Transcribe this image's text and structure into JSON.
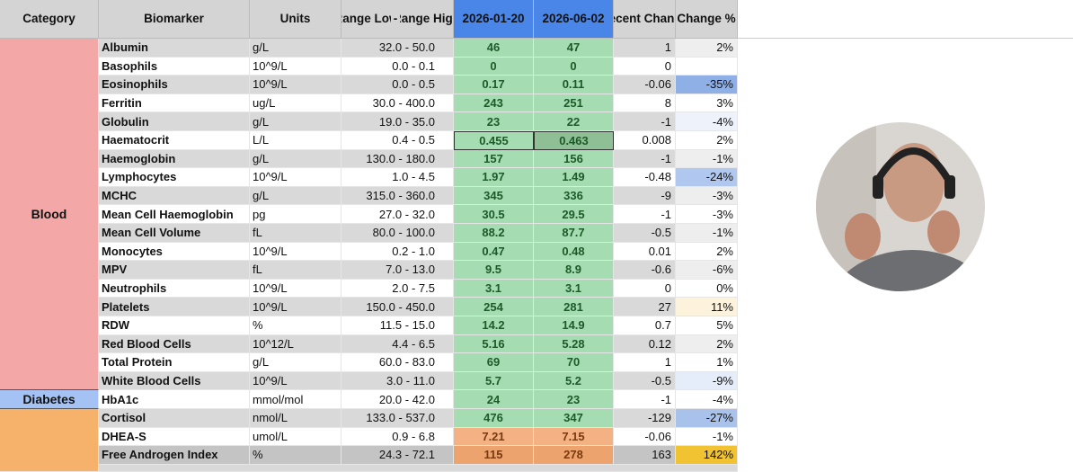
{
  "header": {
    "category": "Category",
    "biomarker": "Biomarker",
    "units": "Units",
    "range_low": "Range Low",
    "range_sep": "-",
    "range_high": "Range High",
    "date1": "2026-01-20",
    "date2": "2026-06-02",
    "recent_change": "Recent Change",
    "change_pct": "Change %"
  },
  "categories": [
    {
      "label": "Blood",
      "first_row": 0,
      "last_row": 18
    },
    {
      "label": "Diabetes",
      "first_row": 19,
      "last_row": 19
    }
  ],
  "rows": [
    [
      "Albumin",
      "g/L",
      "32.0 - 50.0",
      "46",
      "47",
      "1",
      "2%"
    ],
    [
      "Basophils",
      "10^9/L",
      "0.0 - 0.1",
      "0",
      "0",
      "0",
      ""
    ],
    [
      "Eosinophils",
      "10^9/L",
      "0.0 - 0.5",
      "0.17",
      "0.11",
      "-0.06",
      "-35%"
    ],
    [
      "Ferritin",
      "ug/L",
      "30.0 - 400.0",
      "243",
      "251",
      "8",
      "3%"
    ],
    [
      "Globulin",
      "g/L",
      "19.0 - 35.0",
      "23",
      "22",
      "-1",
      "-4%"
    ],
    [
      "Haematocrit",
      "L/L",
      "0.4 - 0.5",
      "0.455",
      "0.463",
      "0.008",
      "2%"
    ],
    [
      "Haemoglobin",
      "g/L",
      "130.0 - 180.0",
      "157",
      "156",
      "-1",
      "-1%"
    ],
    [
      "Lymphocytes",
      "10^9/L",
      "1.0 - 4.5",
      "1.97",
      "1.49",
      "-0.48",
      "-24%"
    ],
    [
      "MCHC",
      "g/L",
      "315.0 - 360.0",
      "345",
      "336",
      "-9",
      "-3%"
    ],
    [
      "Mean Cell Haemoglobin",
      "pg",
      "27.0 - 32.0",
      "30.5",
      "29.5",
      "-1",
      "-3%"
    ],
    [
      "Mean Cell Volume",
      "fL",
      "80.0 - 100.0",
      "88.2",
      "87.7",
      "-0.5",
      "-1%"
    ],
    [
      "Monocytes",
      "10^9/L",
      "0.2 - 1.0",
      "0.47",
      "0.48",
      "0.01",
      "2%"
    ],
    [
      "MPV",
      "fL",
      "7.0 - 13.0",
      "9.5",
      "8.9",
      "-0.6",
      "-6%"
    ],
    [
      "Neutrophils",
      "10^9/L",
      "2.0 - 7.5",
      "3.1",
      "3.1",
      "0",
      "0%"
    ],
    [
      "Platelets",
      "10^9/L",
      "150.0 - 450.0",
      "254",
      "281",
      "27",
      "11%"
    ],
    [
      "RDW",
      "%",
      "11.5 - 15.0",
      "14.2",
      "14.9",
      "0.7",
      "5%"
    ],
    [
      "Red Blood Cells",
      "10^12/L",
      "4.4 - 6.5",
      "5.16",
      "5.28",
      "0.12",
      "2%"
    ],
    [
      "Total Protein",
      "g/L",
      "60.0 - 83.0",
      "69",
      "70",
      "1",
      "1%"
    ],
    [
      "White Blood Cells",
      "10^9/L",
      "3.0 - 11.0",
      "5.7",
      "5.2",
      "-0.5",
      "-9%"
    ],
    [
      "HbA1c",
      "mmol/mol",
      "20.0 - 42.0",
      "24",
      "23",
      "-1",
      "-4%"
    ],
    [
      "Cortisol",
      "nmol/L",
      "133.0 - 537.0",
      "476",
      "347",
      "-129",
      "-27%"
    ],
    [
      "DHEA-S",
      "umol/L",
      "0.9 - 6.8",
      "7.21",
      "7.15",
      "-0.06",
      "-1%"
    ],
    [
      "Free Androgen Index",
      "%",
      "24.3 - 72.1",
      "115",
      "278",
      "163",
      "142%"
    ]
  ]
}
